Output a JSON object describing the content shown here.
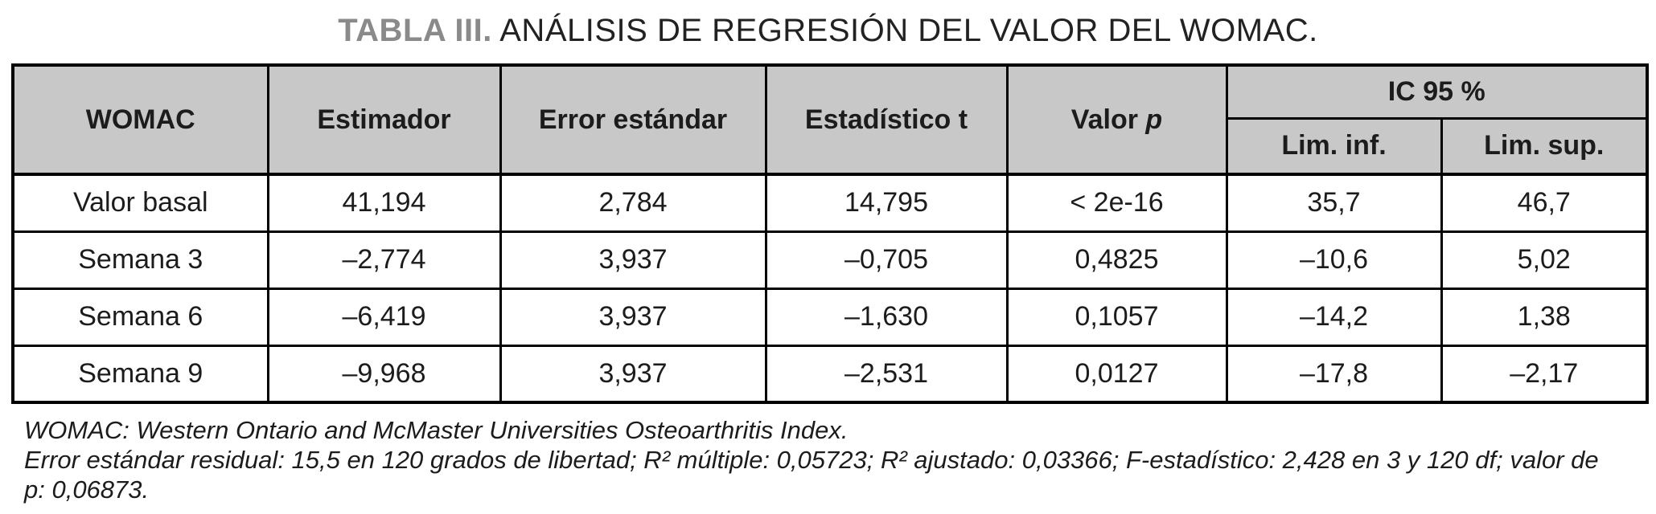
{
  "title": {
    "label": "TABLA III.",
    "text": "ANÁLISIS DE REGRESIÓN DEL VALOR DEL WOMAC."
  },
  "table": {
    "columns": {
      "womac": "WOMAC",
      "estimador": "Estimador",
      "error_estandar": "Error estándar",
      "estadistico_t": "Estadístico t",
      "valor": "Valor",
      "p_symbol": "p",
      "ic95": "IC 95 %",
      "lim_inf": "Lim. inf.",
      "lim_sup": "Lim. sup."
    },
    "rows": [
      {
        "label": "Valor basal",
        "values": [
          "41,194",
          "2,784",
          "14,795",
          "< 2e-16",
          "35,7",
          "46,7"
        ]
      },
      {
        "label": "Semana 3",
        "values": [
          "–2,774",
          "3,937",
          "–0,705",
          "0,4825",
          "–10,6",
          "5,02"
        ]
      },
      {
        "label": "Semana 6",
        "values": [
          "–6,419",
          "3,937",
          "–1,630",
          "0,1057",
          "–14,2",
          "1,38"
        ]
      },
      {
        "label": "Semana 9",
        "values": [
          "–9,968",
          "3,937",
          "–2,531",
          "0,0127",
          "–17,8",
          "–2,17"
        ]
      }
    ]
  },
  "footnotes": [
    "WOMAC: Western Ontario and McMaster Universities Osteoarthritis Index.",
    "Error estándar residual: 15,5 en 120 grados de libertad; R² múltiple: 0,05723; R² ajustado: 0,03366; F-estadístico: 2,428 en 3 y 120 df; valor de p: 0,06873."
  ],
  "colors": {
    "header_bg": "#c8c8c9",
    "border": "#000000",
    "title_label": "#8a8a8a",
    "text": "#1c1c1c"
  }
}
